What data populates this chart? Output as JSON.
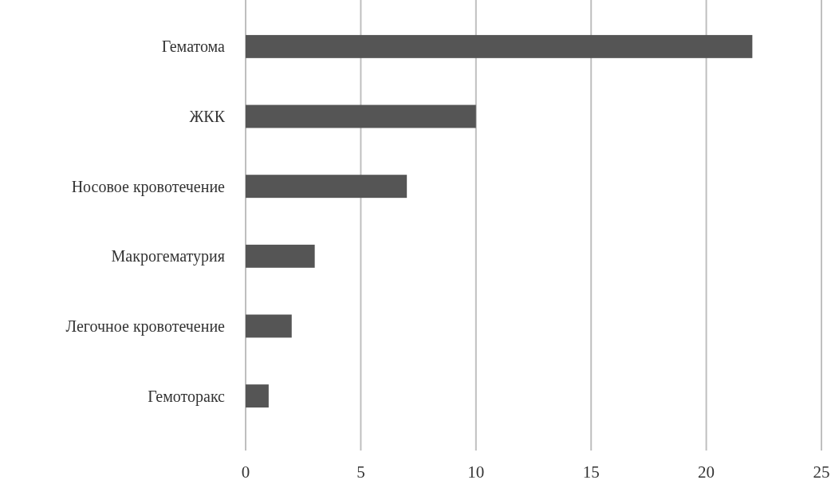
{
  "chart_data": {
    "type": "bar",
    "orientation": "horizontal",
    "categories": [
      "Гематома",
      "ЖКК",
      "Носовое кровотечение",
      "Макрогематурия",
      "Легочное кровотечение",
      "Гемоторакс"
    ],
    "values": [
      22,
      10,
      7,
      3,
      2,
      1
    ],
    "color": "#555555",
    "xlim": [
      0,
      25
    ],
    "xticks": [
      0,
      5,
      10,
      15,
      20,
      25
    ],
    "grid": "x"
  }
}
